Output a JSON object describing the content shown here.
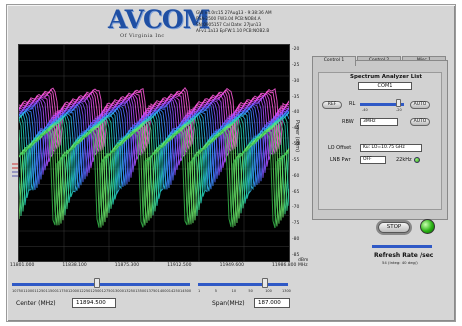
{
  "logo": {
    "name": "AVCOM",
    "sub": "Of Virginia Inc"
  },
  "status_lines": [
    "GUI v4.0rc15  27Aug13 - 9:38:36 AM",
    "PSA-2500 FW3.04 PCB:NOB4.A",
    "SN:0905157  Cal Date: 27Jun13",
    "AFv1.1a13 EpFW:1.10 PCB:NOB2.B"
  ],
  "plot": {
    "y_ticks": [
      "-20",
      "-25",
      "-30",
      "-35",
      "-40",
      "-45",
      "-50",
      "-55",
      "-60",
      "-65",
      "-70",
      "-75",
      "-80",
      "-85"
    ],
    "y_title": "Power (dBm)",
    "x_ticks": [
      "11801.000",
      "11838.100",
      "11875.300",
      "11912.500",
      "11949.600",
      "11986.800"
    ],
    "x_unit": [
      "dBm",
      "MHz"
    ]
  },
  "center": {
    "scale": [
      "10750",
      "11000",
      "11250",
      "11500",
      "11750",
      "12000",
      "12250",
      "12500",
      "12750",
      "13000",
      "13250",
      "13500",
      "13750",
      "14000",
      "14250",
      "14500"
    ],
    "label": "Center (MHz)",
    "value": "11894.500"
  },
  "span": {
    "scale": [
      "1",
      "5",
      "10",
      "50",
      "100",
      "1300"
    ],
    "label": "Span(MHz)",
    "value": "187.000"
  },
  "tabs": [
    "Control 1",
    "Control 2",
    "Misc 1"
  ],
  "panel": {
    "title": "Spectrum Analyzer List",
    "device": "COM1",
    "rl_label": "RL",
    "rl_scale": [
      "-40",
      "-20"
    ],
    "rbw_label": "RBW",
    "rbw_value": "3MHz",
    "lo_label": "LO Offset",
    "lo_value": "Ku: LO=10.75 GHz",
    "lnb_label": "LNB Pwr",
    "lnb_value": "OFF",
    "khz_label": "22kHz",
    "buttons": {
      "ref": "REF",
      "auto1": "AUTO",
      "auto2": "AUTO"
    }
  },
  "stop_label": "STOP",
  "refresh": {
    "label": "Refresh Rate /sec",
    "sub": "54 (Integ: 40 deg/)"
  }
}
